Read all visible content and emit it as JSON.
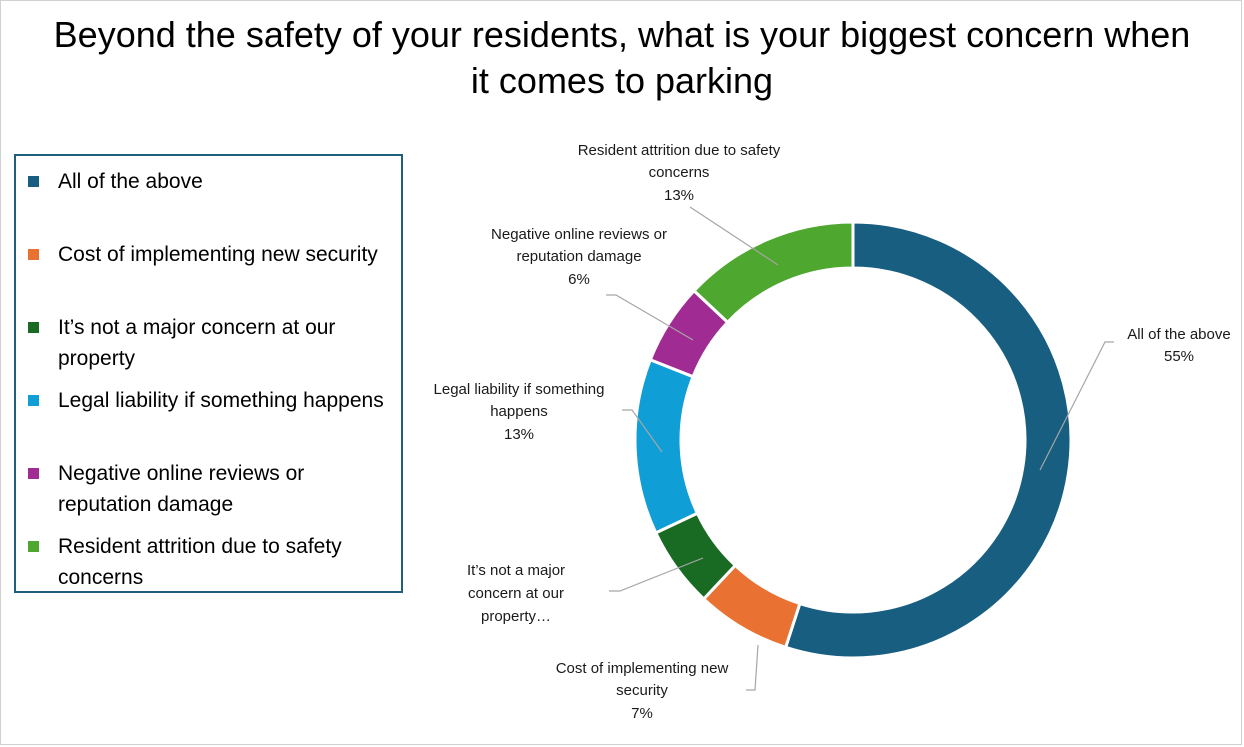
{
  "chart_data": {
    "type": "pie",
    "title": "Beyond the safety of your residents, what is your biggest concern when it comes to parking",
    "legend_placement": "left",
    "categories": [
      "All of the above",
      "Cost of implementing new security",
      "It’s not a major concern at our property",
      "Legal liability if something happens",
      "Negative online reviews or reputation damage",
      "Resident attrition due to safety concerns"
    ],
    "values": [
      55,
      7,
      6,
      13,
      6,
      13
    ],
    "value_labels": [
      "55%",
      "7%",
      "",
      "13%",
      "6%",
      "13%"
    ],
    "data_label_text": [
      "All of the above",
      "Cost of implementing new security",
      "It’s not a major concern at our property…",
      "Legal liability if something happens",
      "Negative online reviews or reputation damage",
      "Resident attrition due to safety concerns"
    ],
    "colors": [
      "#175e80",
      "#e97132",
      "#196b24",
      "#0f9ed5",
      "#a02b93",
      "#4ea72e"
    ]
  }
}
